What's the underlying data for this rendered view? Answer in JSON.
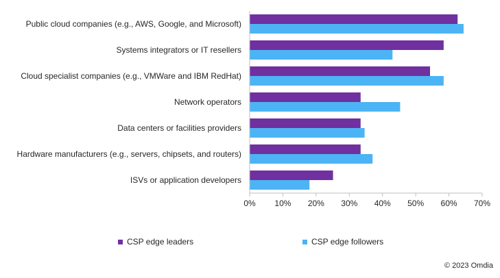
{
  "chart_data": {
    "type": "bar",
    "orientation": "horizontal",
    "categories": [
      "Public cloud companies (e.g., AWS, Google, and Microsoft)",
      "Systems integrators or IT resellers",
      "Cloud specialist companies (e.g., VMWare and IBM RedHat)",
      "Network operators",
      "Data centers or facilities providers",
      "Hardware manufacturers (e.g., servers, chipsets, and routers)",
      "ISVs or application developers"
    ],
    "series": [
      {
        "name": "CSP edge leaders",
        "color": "#7030A0",
        "values": [
          62.5,
          58.3,
          54.2,
          33.3,
          33.3,
          33.3,
          25.0
        ]
      },
      {
        "name": "CSP edge followers",
        "color": "#4CB4F4",
        "values": [
          64.3,
          42.9,
          58.3,
          45.2,
          34.5,
          36.9,
          17.9
        ]
      }
    ],
    "xlim": [
      0,
      70
    ],
    "xticks": [
      "0%",
      "10%",
      "20%",
      "30%",
      "40%",
      "50%",
      "60%",
      "70%"
    ],
    "xlabel": "",
    "ylabel": "",
    "grid": false,
    "legend_position": "bottom"
  },
  "footer": {
    "copyright": "© 2023 Omdia"
  }
}
